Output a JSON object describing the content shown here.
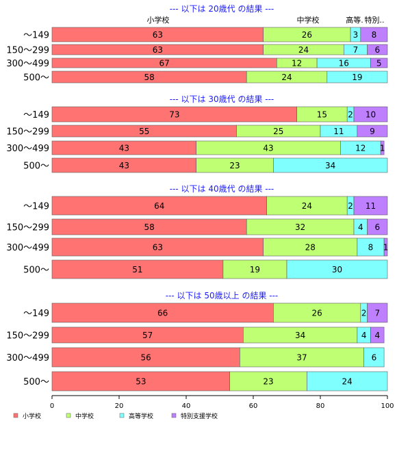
{
  "chart_data": {
    "type": "bar",
    "orientation": "horizontal",
    "stacked": true,
    "xlim": [
      0,
      100
    ],
    "x_ticks": [
      "0",
      "20",
      "40",
      "60",
      "80",
      "100"
    ],
    "column_headers": [
      "小学校",
      "中学校",
      "高等.",
      "特別.."
    ],
    "series_names": [
      "小学校",
      "中学校",
      "高等学校",
      "特別支援学校"
    ],
    "colors": [
      "#ff7373",
      "#bfff73",
      "#80ffff",
      "#bf80ff"
    ],
    "panels": [
      {
        "title": "--- 以下は 20歳代 の結果 ---",
        "categories": [
          "～149",
          "150～299",
          "300～499",
          "500～"
        ],
        "rows": [
          [
            63,
            26,
            3,
            8
          ],
          [
            63,
            24,
            7,
            6
          ],
          [
            67,
            12,
            16,
            5
          ],
          [
            58,
            24,
            19,
            0
          ]
        ]
      },
      {
        "title": "--- 以下は 30歳代 の結果 ---",
        "categories": [
          "～149",
          "150～299",
          "300～499",
          "500～"
        ],
        "rows": [
          [
            73,
            15,
            2,
            10
          ],
          [
            55,
            25,
            11,
            9
          ],
          [
            43,
            43,
            12,
            1
          ],
          [
            43,
            23,
            34,
            0
          ]
        ]
      },
      {
        "title": "--- 以下は 40歳代 の結果 ---",
        "categories": [
          "～149",
          "150～299",
          "300～499",
          "500～"
        ],
        "rows": [
          [
            64,
            24,
            2,
            11
          ],
          [
            58,
            32,
            4,
            6
          ],
          [
            63,
            28,
            8,
            1
          ],
          [
            51,
            19,
            30,
            0
          ]
        ]
      },
      {
        "title": "--- 以下は 50歳以上 の結果 ---",
        "categories": [
          "～149",
          "150～299",
          "300～499",
          "500～"
        ],
        "rows": [
          [
            66,
            26,
            2,
            7
          ],
          [
            57,
            34,
            4,
            4
          ],
          [
            56,
            37,
            6,
            0
          ],
          [
            53,
            23,
            24,
            0
          ]
        ]
      }
    ],
    "legend": [
      "小学校",
      "中学校",
      "高等学校",
      "特別支援学校"
    ],
    "legend_position": "bottom-left"
  }
}
